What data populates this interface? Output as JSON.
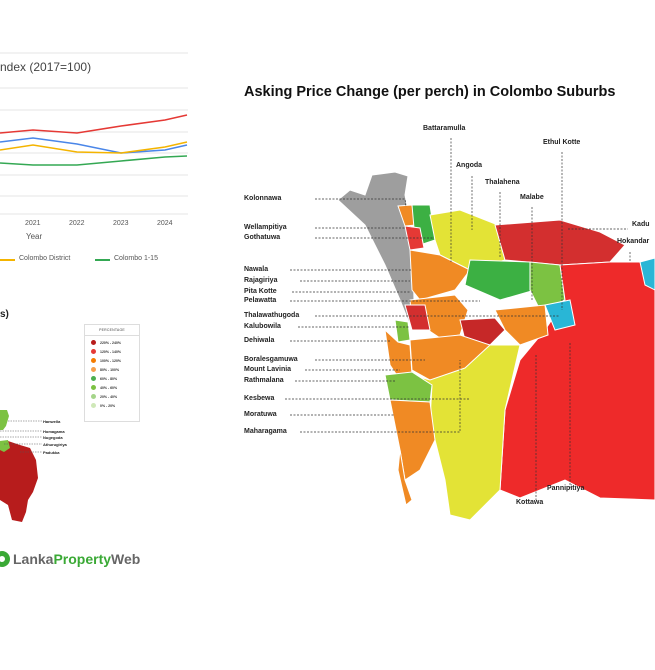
{
  "chart_data": {
    "type": "line",
    "title": "ndex (2017=100)",
    "xlabel": "Year",
    "ylabel": "",
    "categories": [
      "",
      "2021",
      "2022",
      "2023",
      "2024",
      ""
    ],
    "grid": true,
    "legend_placement": "bottom",
    "series": [
      {
        "color": "#e53935",
        "values": [
          133,
          130,
          133,
          126,
          120,
          115
        ]
      },
      {
        "color": "#4a86e8",
        "values": [
          142,
          138,
          144,
          153,
          150,
          145
        ]
      },
      {
        "name": "Colombo District",
        "color": "#f4b400",
        "values": [
          150,
          145,
          152,
          153,
          147,
          142
        ]
      },
      {
        "name": "Colombo 1-15",
        "color": "#34a853",
        "values": [
          163,
          165,
          165,
          161,
          157,
          156
        ]
      }
    ],
    "note_values": "values are relative readings; no y tick labels are visible"
  },
  "left_panel": {
    "partial_title": "s)",
    "legend_title": "PERCENTAGE",
    "legend": [
      {
        "label": "220% - 240%",
        "color": "#b71c1c"
      },
      {
        "label": "120% - 140%",
        "color": "#e53935"
      },
      {
        "label": "100% - 120%",
        "color": "#f57c00"
      },
      {
        "label": "80% - 100%",
        "color": "#f6a04d"
      },
      {
        "label": "60% - 80%",
        "color": "#4caf50"
      },
      {
        "label": "40% - 60%",
        "color": "#7cc242"
      },
      {
        "label": "20% - 40%",
        "color": "#a5d58a"
      },
      {
        "label": "0% - 20%",
        "color": "#cfe8b8"
      }
    ],
    "labels": [
      "Hanwella",
      "Homagama",
      "Nugegoda",
      "Athurugiriya",
      "Padukka"
    ],
    "logo": {
      "part1": "Lanka",
      "part2": "Property",
      "part3": "Web",
      "color": "#3aa935"
    }
  },
  "map": {
    "title": "Asking Price Change (per perch) in Colombo Suburbs",
    "left_labels": [
      "Kolonnawa",
      "Wellampitiya",
      "Gothatuwa",
      "Nawala",
      "Rajagiriya",
      "Pita Kotte",
      "Pelawatta",
      "Thalawathugoda",
      "Kalubowila",
      "Dehiwala",
      "Boralesgamuwa",
      "Mount Lavinia",
      "Rathmalana",
      "Kesbewa",
      "Moratuwa",
      "Maharagama"
    ],
    "top_labels": [
      "Battaramulla",
      "Ethul Kotte",
      "Angoda",
      "Thalahena",
      "Malabe",
      "Kadu",
      "Hokandar"
    ],
    "bottom_labels": [
      "Pannipitiya",
      "Kottawa"
    ]
  }
}
